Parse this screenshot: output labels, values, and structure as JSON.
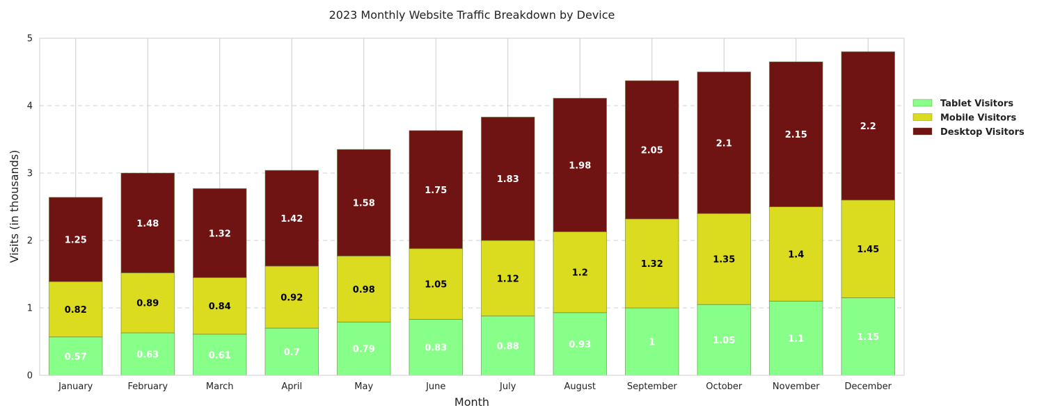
{
  "chart_data": {
    "type": "bar",
    "stacked": true,
    "title": "2023 Monthly Website Traffic Breakdown by Device",
    "xlabel": "Month",
    "ylabel": "Visits (in thousands)",
    "ylim": [
      0,
      5
    ],
    "yticks": [
      0,
      1,
      2,
      3,
      4,
      5
    ],
    "grid": "dashed horizontal, solid vertical",
    "legend_position": "right",
    "categories": [
      "January",
      "February",
      "March",
      "April",
      "May",
      "June",
      "July",
      "August",
      "September",
      "October",
      "November",
      "December"
    ],
    "series": [
      {
        "name": "Tablet Visitors",
        "color": "#88ff88",
        "label_color": "#ffffff",
        "values": [
          0.57,
          0.63,
          0.61,
          0.7,
          0.79,
          0.83,
          0.88,
          0.93,
          1,
          1.05,
          1.1,
          1.15
        ]
      },
      {
        "name": "Mobile Visitors",
        "color": "#dbdb1f",
        "label_color": "#000000",
        "values": [
          0.82,
          0.89,
          0.84,
          0.92,
          0.98,
          1.05,
          1.12,
          1.2,
          1.32,
          1.35,
          1.4,
          1.45
        ]
      },
      {
        "name": "Desktop Visitors",
        "color": "#701313",
        "label_color": "#ffffff",
        "values": [
          1.25,
          1.48,
          1.32,
          1.42,
          1.58,
          1.75,
          1.83,
          1.98,
          2.05,
          2.1,
          2.15,
          2.2
        ]
      }
    ]
  }
}
